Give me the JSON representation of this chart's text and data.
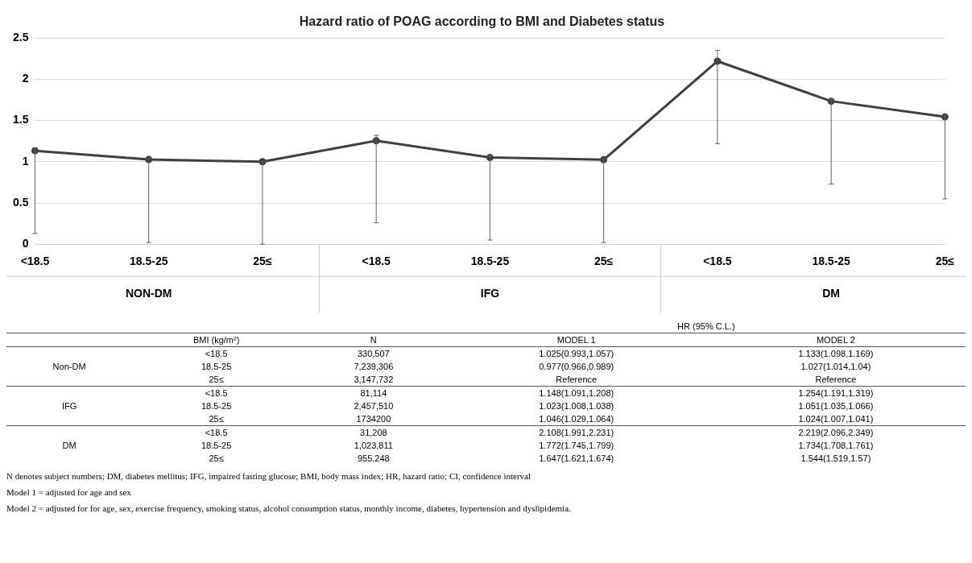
{
  "chart_data": {
    "type": "line",
    "title": "Hazard ratio of POAG according to BMI and Diabetes status",
    "categories": [
      "<18.5",
      "18.5-25",
      "25≤",
      "<18.5",
      "18.5-25",
      "25≤",
      "<18.5",
      "18.5-25",
      "25≤"
    ],
    "series": [
      {
        "color": "#404040",
        "values": [
          1.133,
          1.027,
          1,
          1.254,
          1.051,
          1.024,
          2.219,
          1.734,
          1.544
        ],
        "errors": [
          [
            0.13,
            1.17
          ],
          [
            0.02,
            1.04
          ],
          [
            0,
            1
          ],
          [
            0.26,
            1.32
          ],
          [
            0.05,
            1.07
          ],
          [
            0.02,
            1.04
          ],
          [
            1.22,
            2.35
          ],
          [
            0.73,
            1.76
          ],
          [
            0.55,
            1.57
          ]
        ]
      }
    ],
    "ylim": [
      0,
      2.5
    ],
    "yticks": [
      0,
      0.5,
      1,
      1.5,
      2,
      2.5
    ],
    "grid": "y",
    "legend": false,
    "marker": "circle",
    "line_style": "solid",
    "annotations": [
      "NON-DM",
      "IFG",
      "DM",
      "HR (95% C.L.)",
      "BMI (kg/m²)",
      "N",
      "MODEL 1",
      "MODEL 2",
      "<18.5",
      "330,507",
      "1.025(0.993,1.057)",
      "1.133(1.098,1.169)",
      "18.5-25",
      "7,239,306",
      "0.977(0.966,0.989)",
      "1.027(1.014,1.04)",
      "25≤",
      "3,147,732",
      "Reference",
      "Reference",
      "<18.5",
      "81,114",
      "1.148(1.091,1.208)",
      "1.254(1.191,1.319)",
      "18.5-25",
      "2,457,510",
      "1.023(1.008,1.038)",
      "1.051(1.035,1.066)",
      "25≤",
      "1734200",
      "1.046(1.029,1.064)",
      "1.024(1.007,1.041)",
      "<18.5",
      "31,208",
      "2.108(1.991,2.231)",
      "2.219(2.096,2.349)",
      "18.5-25",
      "1,023,811",
      "1.772(1.745,1.799)",
      "1.734(1.708,1.761)",
      "25≤",
      "955,248",
      "1.647(1.621,1.674)",
      "1.544(1.519,1.57)",
      "Non-DM",
      "IFG",
      "DM",
      "N denotes subject numbers; DM, diabetes mellitus; IFG, impaired fasting glucose; BMI, body mass index; HR, hazard ratio; CI, confidence interval",
      "Model 1 = adjusted for age and sex",
      "Model 2 = adjusted for for age, sex, exercise frequency, smoking status, alcohol consumption status, monthly income, diabetes, hypertension and dyslipidemia."
    ]
  }
}
